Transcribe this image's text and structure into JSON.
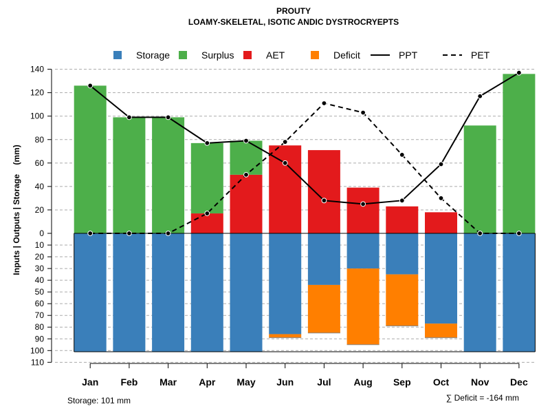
{
  "chart_data": {
    "type": "bar",
    "title": "PROUTY",
    "subtitle": "LOAMY-SKELETAL, ISOTIC ANDIC DYSTROCRYEPTS",
    "ylabel": "Inputs | Outputs | Storage    (mm)",
    "ylim_top": [
      0,
      140
    ],
    "ylim_bottom": [
      0,
      110
    ],
    "yticks_top": [
      0,
      20,
      40,
      60,
      80,
      100,
      120,
      140
    ],
    "yticks_bottom": [
      10,
      20,
      30,
      40,
      50,
      60,
      70,
      80,
      90,
      100,
      110
    ],
    "categories": [
      "Jan",
      "Feb",
      "Mar",
      "Apr",
      "May",
      "Jun",
      "Jul",
      "Aug",
      "Sep",
      "Oct",
      "Nov",
      "Dec"
    ],
    "legend": [
      {
        "key": "storage",
        "label": "Storage",
        "kind": "square",
        "color": "#3A7FBA"
      },
      {
        "key": "surplus",
        "label": "Surplus",
        "kind": "square",
        "color": "#4DAF4A"
      },
      {
        "key": "aet",
        "label": "AET",
        "kind": "square",
        "color": "#E31A1C"
      },
      {
        "key": "deficit",
        "label": "Deficit",
        "kind": "square",
        "color": "#FF7F00"
      },
      {
        "key": "ppt",
        "label": "PPT",
        "kind": "solid-line",
        "color": "#000000"
      },
      {
        "key": "pet",
        "label": "PET",
        "kind": "dashed-line",
        "color": "#000000"
      }
    ],
    "series": {
      "aet": [
        0,
        0,
        0,
        17,
        50,
        75,
        71,
        39,
        23,
        18,
        0,
        0
      ],
      "surplus": [
        126,
        99,
        99,
        60,
        29,
        0,
        0,
        0,
        0,
        0,
        92,
        136
      ],
      "storage": [
        101,
        101,
        101,
        101,
        101,
        86,
        44,
        30,
        35,
        77,
        101,
        101
      ],
      "deficit": [
        0,
        0,
        0,
        0,
        0,
        3,
        41,
        65,
        44,
        12,
        0,
        0
      ],
      "ppt": [
        126,
        99,
        99,
        77,
        79,
        60,
        28,
        25,
        28,
        59,
        117,
        137
      ],
      "pet": [
        0,
        0,
        0,
        17,
        50,
        78,
        111,
        103,
        67,
        30,
        0,
        0
      ]
    },
    "footer": {
      "storage_label": "Storage: 101 mm",
      "deficit_label": "∑ Deficit = -164 mm"
    }
  }
}
